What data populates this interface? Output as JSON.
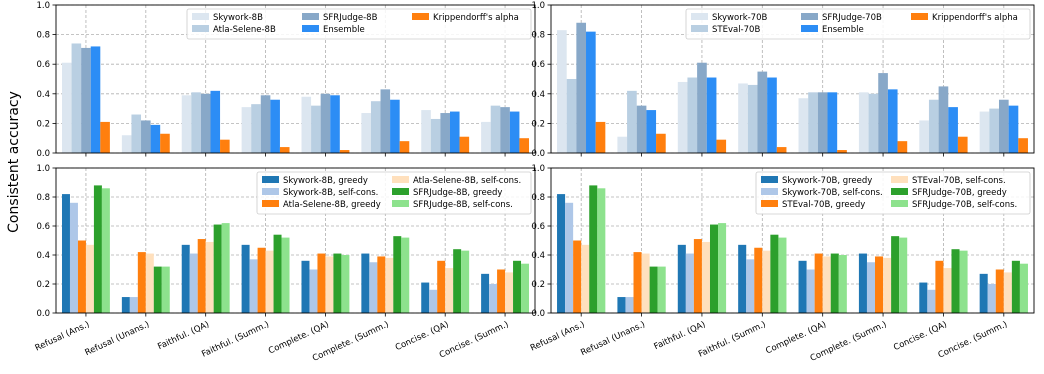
{
  "figure": {
    "ylabel": "Consistent accuracy"
  },
  "chart_data": [
    {
      "type": "bar",
      "panel": "top-left",
      "categories": [
        "Refusal (Ans.)",
        "Refusal (Unans.)",
        "Faithful. (QA)",
        "Faithful. (Summ.)",
        "Complete. (QA)",
        "Complete. (Summ.)",
        "Concise. (QA)",
        "Concise. (Summ.)"
      ],
      "show_xticklabels": false,
      "ylim": [
        0,
        1.0
      ],
      "yticks": [
        "0.0",
        "0.2",
        "0.4",
        "0.6",
        "0.8",
        "1.0"
      ],
      "grid": true,
      "legend_position": "top-right",
      "legend_columns": 3,
      "series": [
        {
          "name": "Skywork-8B",
          "color": "#dce6f0",
          "values": [
            0.61,
            0.12,
            0.39,
            0.31,
            0.38,
            0.27,
            0.29,
            0.21
          ]
        },
        {
          "name": "Atla-Selene-8B",
          "color": "#b9cfe2",
          "values": [
            0.74,
            0.26,
            0.41,
            0.33,
            0.32,
            0.35,
            0.23,
            0.32
          ]
        },
        {
          "name": "SFRJudge-8B",
          "color": "#88a8c8",
          "values": [
            0.71,
            0.22,
            0.4,
            0.39,
            0.4,
            0.43,
            0.27,
            0.31
          ]
        },
        {
          "name": "Ensemble",
          "color": "#2c8df5",
          "values": [
            0.72,
            0.19,
            0.42,
            0.36,
            0.39,
            0.36,
            0.28,
            0.28
          ]
        },
        {
          "name": "Krippendorff's alpha",
          "color": "#ff7f0e",
          "values": [
            0.21,
            0.13,
            0.09,
            0.04,
            0.02,
            0.08,
            0.11,
            0.1
          ]
        }
      ]
    },
    {
      "type": "bar",
      "panel": "top-right",
      "categories": [
        "Refusal (Ans.)",
        "Refusal (Unans.)",
        "Faithful. (QA)",
        "Faithful. (Summ.)",
        "Complete. (QA)",
        "Complete. (Summ.)",
        "Concise. (QA)",
        "Concise. (Summ.)"
      ],
      "show_xticklabels": false,
      "ylim": [
        0,
        1.0
      ],
      "yticks": [
        "0.0",
        "0.2",
        "0.4",
        "0.6",
        "0.8",
        "1.0"
      ],
      "grid": true,
      "legend_position": "top-right",
      "legend_columns": 3,
      "series": [
        {
          "name": "Skywork-70B",
          "color": "#dce6f0",
          "values": [
            0.83,
            0.11,
            0.48,
            0.47,
            0.37,
            0.41,
            0.22,
            0.28
          ]
        },
        {
          "name": "STEval-70B",
          "color": "#b9cfe2",
          "values": [
            0.5,
            0.42,
            0.51,
            0.46,
            0.41,
            0.4,
            0.36,
            0.3
          ]
        },
        {
          "name": "SFRJudge-70B",
          "color": "#88a8c8",
          "values": [
            0.88,
            0.32,
            0.61,
            0.55,
            0.41,
            0.54,
            0.45,
            0.36
          ]
        },
        {
          "name": "Ensemble",
          "color": "#2c8df5",
          "values": [
            0.82,
            0.29,
            0.51,
            0.51,
            0.41,
            0.43,
            0.31,
            0.32
          ]
        },
        {
          "name": "Krippendorff's alpha",
          "color": "#ff7f0e",
          "values": [
            0.21,
            0.13,
            0.09,
            0.04,
            0.02,
            0.08,
            0.11,
            0.1
          ]
        }
      ]
    },
    {
      "type": "bar",
      "panel": "bottom-left",
      "categories": [
        "Refusal (Ans.)",
        "Refusal (Unans.)",
        "Faithful. (QA)",
        "Faithful. (Summ.)",
        "Complete. (QA)",
        "Complete. (Summ.)",
        "Concise. (QA)",
        "Concise. (Summ.)"
      ],
      "show_xticklabels": true,
      "ylim": [
        0,
        1.0
      ],
      "yticks": [
        "0.0",
        "0.2",
        "0.4",
        "0.6",
        "0.8",
        "1.0"
      ],
      "grid": true,
      "legend_position": "top-right",
      "legend_columns": 2,
      "series": [
        {
          "name": "Skywork-8B, greedy",
          "color": "#1f77b4",
          "values": [
            0.82,
            0.11,
            0.47,
            0.47,
            0.36,
            0.41,
            0.21,
            0.27
          ]
        },
        {
          "name": "Skywork-8B, self-cons.",
          "color": "#aec7e8",
          "values": [
            0.76,
            0.11,
            0.41,
            0.37,
            0.3,
            0.35,
            0.16,
            0.2
          ]
        },
        {
          "name": "Atla-Selene-8B, greedy",
          "color": "#ff7f0e",
          "values": [
            0.5,
            0.42,
            0.51,
            0.45,
            0.41,
            0.39,
            0.36,
            0.3
          ]
        },
        {
          "name": "Atla-Selene-8B, self-cons.",
          "color": "#ffe0bd",
          "values": [
            0.47,
            0.41,
            0.49,
            0.43,
            0.39,
            0.38,
            0.31,
            0.28
          ]
        },
        {
          "name": "SFRJudge-8B, greedy",
          "color": "#2ca02c",
          "values": [
            0.88,
            0.32,
            0.61,
            0.54,
            0.41,
            0.53,
            0.44,
            0.36
          ]
        },
        {
          "name": "SFRJudge-8B, self-cons.",
          "color": "#8de28d",
          "values": [
            0.86,
            0.32,
            0.62,
            0.52,
            0.4,
            0.52,
            0.43,
            0.34
          ]
        }
      ]
    },
    {
      "type": "bar",
      "panel": "bottom-right",
      "categories": [
        "Refusal (Ans.)",
        "Refusal (Unans.)",
        "Faithful. (QA)",
        "Faithful. (Summ.)",
        "Complete. (QA)",
        "Complete. (Summ.)",
        "Concise. (QA)",
        "Concise. (Summ.)"
      ],
      "show_xticklabels": true,
      "ylim": [
        0,
        1.0
      ],
      "yticks": [
        "0.0",
        "0.2",
        "0.4",
        "0.6",
        "0.8",
        "1.0"
      ],
      "grid": true,
      "legend_position": "top-right",
      "legend_columns": 2,
      "series": [
        {
          "name": "Skywork-70B, greedy",
          "color": "#1f77b4",
          "values": [
            0.82,
            0.11,
            0.47,
            0.47,
            0.36,
            0.41,
            0.21,
            0.27
          ]
        },
        {
          "name": "Skywork-70B, self-cons.",
          "color": "#aec7e8",
          "values": [
            0.76,
            0.11,
            0.41,
            0.37,
            0.3,
            0.35,
            0.16,
            0.2
          ]
        },
        {
          "name": "STEval-70B, greedy",
          "color": "#ff7f0e",
          "values": [
            0.5,
            0.42,
            0.51,
            0.45,
            0.41,
            0.39,
            0.36,
            0.3
          ]
        },
        {
          "name": "STEval-70B, self-cons.",
          "color": "#ffe0bd",
          "values": [
            0.47,
            0.41,
            0.49,
            0.43,
            0.39,
            0.38,
            0.31,
            0.28
          ]
        },
        {
          "name": "SFRJudge-70B, greedy",
          "color": "#2ca02c",
          "values": [
            0.88,
            0.32,
            0.61,
            0.54,
            0.41,
            0.53,
            0.44,
            0.36
          ]
        },
        {
          "name": "SFRJudge-70B, self-cons.",
          "color": "#8de28d",
          "values": [
            0.86,
            0.32,
            0.62,
            0.52,
            0.4,
            0.52,
            0.43,
            0.34
          ]
        }
      ]
    }
  ]
}
